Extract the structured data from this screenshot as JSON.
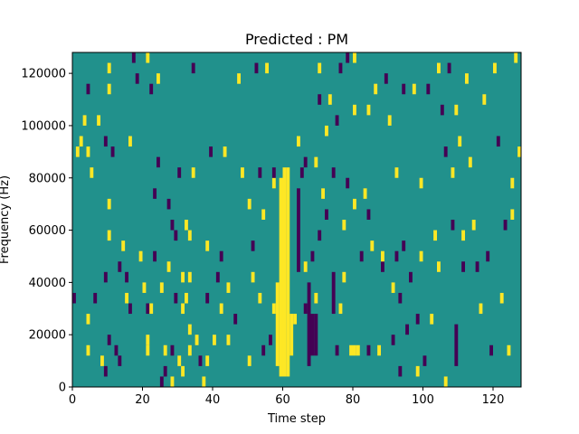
{
  "chart_data": {
    "type": "heatmap",
    "title": "Predicted : PM",
    "xlabel": "Time step",
    "ylabel": "Frequency (Hz)",
    "xlim": [
      0,
      128
    ],
    "ylim": [
      0,
      128000
    ],
    "xticks": [
      0,
      20,
      40,
      60,
      80,
      100,
      120
    ],
    "yticks": [
      0,
      20000,
      40000,
      60000,
      80000,
      100000,
      120000
    ],
    "xtick_labels": [
      "0",
      "20",
      "40",
      "60",
      "80",
      "100",
      "120"
    ],
    "ytick_labels": [
      "0",
      "20000",
      "40000",
      "60000",
      "80000",
      "100000",
      "120000"
    ],
    "grid": false,
    "colors": {
      "background": "#21918c",
      "high": "#fde725",
      "low": "#440154"
    },
    "value_levels": {
      "low": -1,
      "background": 0,
      "high": 1
    },
    "columns_dt": 1,
    "row_height_hz": 4000,
    "segments": [
      {
        "x": 60,
        "y0": 4000,
        "y1": 84000,
        "v": 1
      },
      {
        "x": 59,
        "y0": 4000,
        "y1": 80000,
        "v": 1
      },
      {
        "x": 58,
        "y0": 8000,
        "y1": 40000,
        "v": 1
      },
      {
        "x": 61,
        "y0": 4000,
        "y1": 84000,
        "v": 1
      },
      {
        "x": 62,
        "y0": 12000,
        "y1": 28000,
        "v": 1
      },
      {
        "x": 68,
        "y0": 12000,
        "y1": 28000,
        "v": -1
      },
      {
        "x": 69,
        "y0": 12000,
        "y1": 28000,
        "v": -1
      },
      {
        "x": 67,
        "y0": 8000,
        "y1": 40000,
        "v": -1
      },
      {
        "x": 64,
        "y0": 44000,
        "y1": 76000,
        "v": -1
      },
      {
        "x": 74,
        "y0": 28000,
        "y1": 44000,
        "v": -1
      },
      {
        "x": 80,
        "y0": 12000,
        "y1": 16000,
        "v": 1
      },
      {
        "x": 81,
        "y0": 12000,
        "y1": 16000,
        "v": 1
      },
      {
        "x": 91,
        "y0": 16000,
        "y1": 20000,
        "v": -1
      },
      {
        "x": 92,
        "y0": 48000,
        "y1": 52000,
        "v": -1
      },
      {
        "x": 109,
        "y0": 8000,
        "y1": 24000,
        "v": -1
      },
      {
        "x": 25,
        "y0": 0,
        "y1": 4000,
        "v": -1
      },
      {
        "x": 28,
        "y0": 0,
        "y1": 4000,
        "v": 1
      }
    ],
    "cells": [
      {
        "x": 0,
        "y": 32000,
        "v": -1
      },
      {
        "x": 1,
        "y": 88000,
        "v": 1
      },
      {
        "x": 2,
        "y": 92000,
        "v": 1
      },
      {
        "x": 3,
        "y": 100000,
        "v": 1
      },
      {
        "x": 4,
        "y": 24000,
        "v": 1
      },
      {
        "x": 4,
        "y": 12000,
        "v": 1
      },
      {
        "x": 4,
        "y": 88000,
        "v": 1
      },
      {
        "x": 4,
        "y": 112000,
        "v": -1
      },
      {
        "x": 5,
        "y": 80000,
        "v": 1
      },
      {
        "x": 6,
        "y": 32000,
        "v": -1
      },
      {
        "x": 7,
        "y": 100000,
        "v": 1
      },
      {
        "x": 8,
        "y": 8000,
        "v": 1
      },
      {
        "x": 9,
        "y": 4000,
        "v": -1
      },
      {
        "x": 9,
        "y": 40000,
        "v": -1
      },
      {
        "x": 9,
        "y": 92000,
        "v": -1
      },
      {
        "x": 10,
        "y": 68000,
        "v": 1
      },
      {
        "x": 10,
        "y": 56000,
        "v": 1
      },
      {
        "x": 10,
        "y": 16000,
        "v": -1
      },
      {
        "x": 10,
        "y": 120000,
        "v": 1
      },
      {
        "x": 10,
        "y": 112000,
        "v": 1
      },
      {
        "x": 11,
        "y": 88000,
        "v": -1
      },
      {
        "x": 12,
        "y": 12000,
        "v": -1
      },
      {
        "x": 13,
        "y": 44000,
        "v": -1
      },
      {
        "x": 13,
        "y": 8000,
        "v": -1
      },
      {
        "x": 14,
        "y": 52000,
        "v": 1
      },
      {
        "x": 15,
        "y": 40000,
        "v": -1
      },
      {
        "x": 15,
        "y": 32000,
        "v": 1
      },
      {
        "x": 16,
        "y": 28000,
        "v": -1
      },
      {
        "x": 16,
        "y": 92000,
        "v": 1
      },
      {
        "x": 17,
        "y": 124000,
        "v": -1
      },
      {
        "x": 18,
        "y": 116000,
        "v": -1
      },
      {
        "x": 19,
        "y": 48000,
        "v": 1
      },
      {
        "x": 20,
        "y": 36000,
        "v": 1
      },
      {
        "x": 21,
        "y": 16000,
        "v": 1
      },
      {
        "x": 21,
        "y": 12000,
        "v": 1
      },
      {
        "x": 21,
        "y": 28000,
        "v": -1
      },
      {
        "x": 21,
        "y": 124000,
        "v": 1
      },
      {
        "x": 22,
        "y": 28000,
        "v": 1
      },
      {
        "x": 22,
        "y": 112000,
        "v": -1
      },
      {
        "x": 23,
        "y": 72000,
        "v": -1
      },
      {
        "x": 23,
        "y": 48000,
        "v": -1
      },
      {
        "x": 24,
        "y": 84000,
        "v": -1
      },
      {
        "x": 24,
        "y": 116000,
        "v": 1
      },
      {
        "x": 25,
        "y": 36000,
        "v": 1
      },
      {
        "x": 26,
        "y": 12000,
        "v": 1
      },
      {
        "x": 26,
        "y": 4000,
        "v": -1
      },
      {
        "x": 27,
        "y": 68000,
        "v": -1
      },
      {
        "x": 27,
        "y": 44000,
        "v": 1
      },
      {
        "x": 28,
        "y": 60000,
        "v": -1
      },
      {
        "x": 28,
        "y": 12000,
        "v": -1
      },
      {
        "x": 29,
        "y": 56000,
        "v": -1
      },
      {
        "x": 29,
        "y": 32000,
        "v": -1
      },
      {
        "x": 30,
        "y": 80000,
        "v": -1
      },
      {
        "x": 30,
        "y": 8000,
        "v": 1
      },
      {
        "x": 31,
        "y": 4000,
        "v": 1
      },
      {
        "x": 31,
        "y": 40000,
        "v": 1
      },
      {
        "x": 31,
        "y": 28000,
        "v": 1
      },
      {
        "x": 32,
        "y": 60000,
        "v": 1
      },
      {
        "x": 32,
        "y": 32000,
        "v": 1
      },
      {
        "x": 33,
        "y": 56000,
        "v": 1
      },
      {
        "x": 33,
        "y": 40000,
        "v": 1
      },
      {
        "x": 33,
        "y": 12000,
        "v": 1
      },
      {
        "x": 33,
        "y": 20000,
        "v": 1
      },
      {
        "x": 34,
        "y": 80000,
        "v": 1
      },
      {
        "x": 34,
        "y": 120000,
        "v": -1
      },
      {
        "x": 35,
        "y": 16000,
        "v": 1
      },
      {
        "x": 36,
        "y": 8000,
        "v": -1
      },
      {
        "x": 37,
        "y": 0,
        "v": 1
      },
      {
        "x": 38,
        "y": 8000,
        "v": 1
      },
      {
        "x": 38,
        "y": 32000,
        "v": -1
      },
      {
        "x": 38,
        "y": 52000,
        "v": 1
      },
      {
        "x": 39,
        "y": 88000,
        "v": -1
      },
      {
        "x": 40,
        "y": 16000,
        "v": 1
      },
      {
        "x": 41,
        "y": 40000,
        "v": -1
      },
      {
        "x": 42,
        "y": 48000,
        "v": -1
      },
      {
        "x": 42,
        "y": 28000,
        "v": 1
      },
      {
        "x": 43,
        "y": 88000,
        "v": 1
      },
      {
        "x": 44,
        "y": 16000,
        "v": 1
      },
      {
        "x": 44,
        "y": 36000,
        "v": 1
      },
      {
        "x": 46,
        "y": 24000,
        "v": -1
      },
      {
        "x": 47,
        "y": 116000,
        "v": 1
      },
      {
        "x": 48,
        "y": 80000,
        "v": 1
      },
      {
        "x": 50,
        "y": 68000,
        "v": 1
      },
      {
        "x": 50,
        "y": 8000,
        "v": 1
      },
      {
        "x": 51,
        "y": 52000,
        "v": -1
      },
      {
        "x": 51,
        "y": 40000,
        "v": 1
      },
      {
        "x": 52,
        "y": 120000,
        "v": -1
      },
      {
        "x": 53,
        "y": 80000,
        "v": -1
      },
      {
        "x": 53,
        "y": 32000,
        "v": 1
      },
      {
        "x": 54,
        "y": 64000,
        "v": 1
      },
      {
        "x": 54,
        "y": 12000,
        "v": -1
      },
      {
        "x": 55,
        "y": 120000,
        "v": 1
      },
      {
        "x": 56,
        "y": 16000,
        "v": -1
      },
      {
        "x": 57,
        "y": 76000,
        "v": 1
      },
      {
        "x": 57,
        "y": 28000,
        "v": 1
      },
      {
        "x": 57,
        "y": 80000,
        "v": -1
      },
      {
        "x": 63,
        "y": 24000,
        "v": 1
      },
      {
        "x": 64,
        "y": 92000,
        "v": 1
      },
      {
        "x": 65,
        "y": 80000,
        "v": -1
      },
      {
        "x": 66,
        "y": 44000,
        "v": 1
      },
      {
        "x": 66,
        "y": 28000,
        "v": -1
      },
      {
        "x": 66,
        "y": 84000,
        "v": -1
      },
      {
        "x": 68,
        "y": 48000,
        "v": -1
      },
      {
        "x": 69,
        "y": 84000,
        "v": 1
      },
      {
        "x": 69,
        "y": 32000,
        "v": 1
      },
      {
        "x": 70,
        "y": 56000,
        "v": -1
      },
      {
        "x": 70,
        "y": 108000,
        "v": -1
      },
      {
        "x": 70,
        "y": 120000,
        "v": 1
      },
      {
        "x": 71,
        "y": 72000,
        "v": 1
      },
      {
        "x": 72,
        "y": 64000,
        "v": -1
      },
      {
        "x": 72,
        "y": 96000,
        "v": 1
      },
      {
        "x": 73,
        "y": 108000,
        "v": 1
      },
      {
        "x": 74,
        "y": 80000,
        "v": -1
      },
      {
        "x": 75,
        "y": 100000,
        "v": -1
      },
      {
        "x": 75,
        "y": 12000,
        "v": -1
      },
      {
        "x": 76,
        "y": 120000,
        "v": -1
      },
      {
        "x": 76,
        "y": 28000,
        "v": 1
      },
      {
        "x": 77,
        "y": 40000,
        "v": 1
      },
      {
        "x": 77,
        "y": 60000,
        "v": 1
      },
      {
        "x": 78,
        "y": 76000,
        "v": -1
      },
      {
        "x": 78,
        "y": 124000,
        "v": -1
      },
      {
        "x": 79,
        "y": 12000,
        "v": 1
      },
      {
        "x": 80,
        "y": 68000,
        "v": 1
      },
      {
        "x": 80,
        "y": 104000,
        "v": 1
      },
      {
        "x": 80,
        "y": 124000,
        "v": 1
      },
      {
        "x": 82,
        "y": 48000,
        "v": -1
      },
      {
        "x": 83,
        "y": 72000,
        "v": 1
      },
      {
        "x": 84,
        "y": 64000,
        "v": -1
      },
      {
        "x": 84,
        "y": 12000,
        "v": -1
      },
      {
        "x": 84,
        "y": 104000,
        "v": 1
      },
      {
        "x": 85,
        "y": 52000,
        "v": 1
      },
      {
        "x": 86,
        "y": 112000,
        "v": 1
      },
      {
        "x": 87,
        "y": 12000,
        "v": 1
      },
      {
        "x": 88,
        "y": 44000,
        "v": -1
      },
      {
        "x": 88,
        "y": 48000,
        "v": 1
      },
      {
        "x": 89,
        "y": 116000,
        "v": -1
      },
      {
        "x": 90,
        "y": 100000,
        "v": 1
      },
      {
        "x": 91,
        "y": 36000,
        "v": 1
      },
      {
        "x": 92,
        "y": 80000,
        "v": 1
      },
      {
        "x": 93,
        "y": 32000,
        "v": -1
      },
      {
        "x": 93,
        "y": 4000,
        "v": -1
      },
      {
        "x": 94,
        "y": 112000,
        "v": -1
      },
      {
        "x": 94,
        "y": 52000,
        "v": -1
      },
      {
        "x": 95,
        "y": 20000,
        "v": -1
      },
      {
        "x": 96,
        "y": 40000,
        "v": -1
      },
      {
        "x": 97,
        "y": 112000,
        "v": 1
      },
      {
        "x": 98,
        "y": 24000,
        "v": -1
      },
      {
        "x": 98,
        "y": 4000,
        "v": 1
      },
      {
        "x": 99,
        "y": 76000,
        "v": 1
      },
      {
        "x": 99,
        "y": 48000,
        "v": 1
      },
      {
        "x": 100,
        "y": 8000,
        "v": -1
      },
      {
        "x": 101,
        "y": 112000,
        "v": -1
      },
      {
        "x": 102,
        "y": 24000,
        "v": 1
      },
      {
        "x": 103,
        "y": 56000,
        "v": 1
      },
      {
        "x": 104,
        "y": 120000,
        "v": 1
      },
      {
        "x": 104,
        "y": 44000,
        "v": 1
      },
      {
        "x": 105,
        "y": 104000,
        "v": -1
      },
      {
        "x": 106,
        "y": 0,
        "v": 1
      },
      {
        "x": 106,
        "y": 88000,
        "v": -1
      },
      {
        "x": 107,
        "y": 120000,
        "v": -1
      },
      {
        "x": 108,
        "y": 60000,
        "v": -1
      },
      {
        "x": 108,
        "y": 80000,
        "v": 1
      },
      {
        "x": 109,
        "y": 104000,
        "v": 1
      },
      {
        "x": 110,
        "y": 92000,
        "v": 1
      },
      {
        "x": 111,
        "y": 56000,
        "v": 1
      },
      {
        "x": 111,
        "y": 44000,
        "v": -1
      },
      {
        "x": 112,
        "y": 116000,
        "v": 1
      },
      {
        "x": 113,
        "y": 84000,
        "v": 1
      },
      {
        "x": 114,
        "y": 60000,
        "v": 1
      },
      {
        "x": 115,
        "y": 44000,
        "v": -1
      },
      {
        "x": 116,
        "y": 28000,
        "v": 1
      },
      {
        "x": 117,
        "y": 108000,
        "v": 1
      },
      {
        "x": 118,
        "y": 48000,
        "v": -1
      },
      {
        "x": 119,
        "y": 12000,
        "v": -1
      },
      {
        "x": 120,
        "y": 120000,
        "v": 1
      },
      {
        "x": 121,
        "y": 92000,
        "v": -1
      },
      {
        "x": 122,
        "y": 32000,
        "v": 1
      },
      {
        "x": 123,
        "y": 60000,
        "v": -1
      },
      {
        "x": 124,
        "y": 12000,
        "v": 1
      },
      {
        "x": 125,
        "y": 76000,
        "v": 1
      },
      {
        "x": 125,
        "y": 64000,
        "v": 1
      },
      {
        "x": 126,
        "y": 124000,
        "v": 1
      },
      {
        "x": 127,
        "y": 88000,
        "v": 1
      }
    ]
  }
}
